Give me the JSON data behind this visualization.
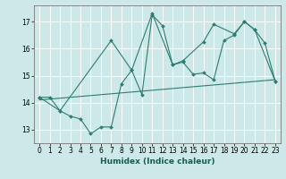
{
  "xlabel": "Humidex (Indice chaleur)",
  "bg_color": "#cce8e8",
  "line_color": "#2e7d6e",
  "grid_color": "#ffffff",
  "xlim": [
    -0.5,
    23.5
  ],
  "ylim": [
    12.5,
    17.6
  ],
  "yticks": [
    13,
    14,
    15,
    16,
    17
  ],
  "xticks": [
    0,
    1,
    2,
    3,
    4,
    5,
    6,
    7,
    8,
    9,
    10,
    11,
    12,
    13,
    14,
    15,
    16,
    17,
    18,
    19,
    20,
    21,
    22,
    23
  ],
  "line1_x": [
    0,
    1,
    2,
    3,
    4,
    5,
    6,
    7,
    8,
    9,
    10,
    11,
    12,
    13,
    14,
    15,
    16,
    17,
    18,
    19,
    20,
    21,
    22,
    23
  ],
  "line1_y": [
    14.2,
    14.2,
    13.7,
    13.5,
    13.4,
    12.85,
    13.1,
    13.1,
    14.7,
    15.2,
    14.3,
    17.25,
    16.85,
    15.4,
    15.5,
    15.05,
    15.1,
    14.85,
    16.3,
    16.5,
    17.0,
    16.7,
    16.2,
    14.8
  ],
  "line2_x": [
    0,
    2,
    7,
    9,
    11,
    13,
    14,
    16,
    17,
    19,
    20,
    21,
    23
  ],
  "line2_y": [
    14.2,
    13.7,
    16.3,
    15.2,
    17.3,
    15.4,
    15.55,
    16.25,
    16.9,
    16.55,
    17.0,
    16.7,
    14.8
  ],
  "line3_x": [
    0,
    23
  ],
  "line3_y": [
    14.1,
    14.85
  ],
  "tick_fontsize": 5.5,
  "xlabel_fontsize": 6.5
}
